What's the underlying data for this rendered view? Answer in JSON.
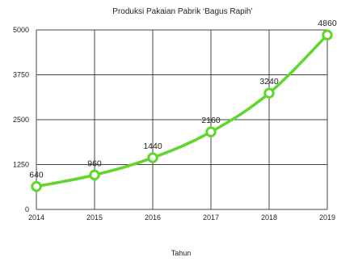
{
  "chart_data": {
    "type": "line",
    "title": "Produksi Pakaian Pabrik ‘Bagus Rapih’",
    "xlabel": "Tahun",
    "ylabel": "",
    "categories": [
      "2014",
      "2015",
      "2016",
      "2017",
      "2018",
      "2019"
    ],
    "series": [
      {
        "values": [
          640,
          960,
          1440,
          2160,
          3240,
          4860
        ]
      }
    ],
    "data_labels": [
      "640",
      "960",
      "1440",
      "2160",
      "3240",
      "4860"
    ],
    "y_ticks": [
      "0",
      "1250",
      "2500",
      "3750",
      "5000"
    ],
    "ylim": [
      0,
      5000
    ],
    "grid": true,
    "legend": "none",
    "colors": {
      "line": "#5fd62a",
      "marker_fill": "#ffffff",
      "grid": "#444444"
    }
  }
}
